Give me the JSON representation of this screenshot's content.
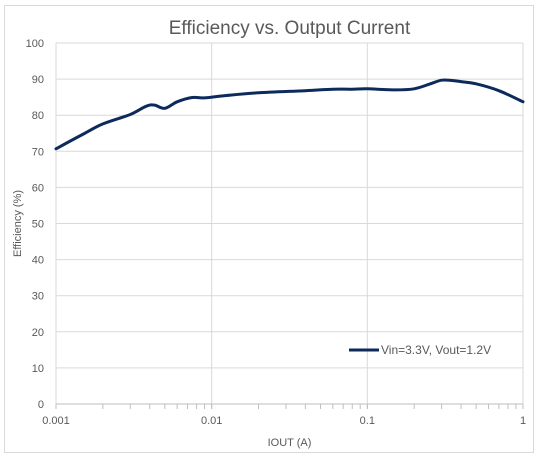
{
  "chart_data": {
    "type": "line",
    "title": "Efficiency vs. Output Current",
    "xlabel": "IOUT (A)",
    "ylabel": "Efficiency (%)",
    "x_scale": "log",
    "xlim": [
      0.001,
      1
    ],
    "ylim": [
      0,
      100
    ],
    "x_ticks": [
      0.001,
      0.01,
      0.1,
      1
    ],
    "x_tick_labels": [
      "0.001",
      "0.01",
      "0.1",
      "1"
    ],
    "y_ticks": [
      0,
      10,
      20,
      30,
      40,
      50,
      60,
      70,
      80,
      90,
      100
    ],
    "y_tick_labels": [
      "0",
      "10",
      "20",
      "30",
      "40",
      "50",
      "60",
      "70",
      "80",
      "90",
      "100"
    ],
    "grid": true,
    "legend_position": "lower-right",
    "series": [
      {
        "name": "Vin=3.3V, Vout=1.2V",
        "color": "#0c2a5b",
        "x": [
          0.001,
          0.0015,
          0.002,
          0.003,
          0.0038,
          0.0043,
          0.005,
          0.006,
          0.0075,
          0.009,
          0.012,
          0.02,
          0.04,
          0.06,
          0.08,
          0.1,
          0.15,
          0.2,
          0.25,
          0.3,
          0.35,
          0.4,
          0.5,
          0.7,
          1.0
        ],
        "y": [
          70.7,
          74.8,
          77.6,
          80.2,
          82.5,
          82.8,
          81.9,
          83.7,
          84.9,
          84.8,
          85.4,
          86.2,
          86.8,
          87.2,
          87.2,
          87.3,
          87.0,
          87.3,
          88.6,
          89.7,
          89.6,
          89.3,
          88.7,
          86.8,
          83.7
        ]
      }
    ]
  }
}
